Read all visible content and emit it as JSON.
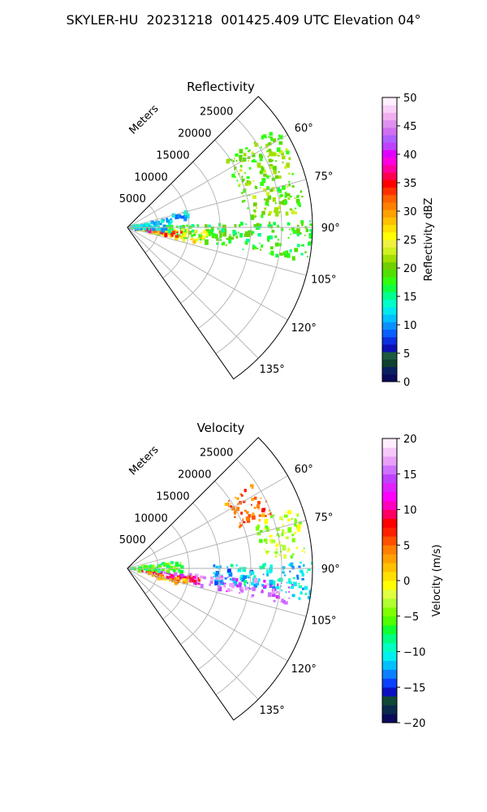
{
  "figure": {
    "title": "SKYLER-HU  20231218  001425.409 UTC Elevation 04°"
  },
  "chart_data": [
    {
      "type": "heatmap",
      "projection": "polar-sector",
      "title": "Reflectivity",
      "range_label": "Meters",
      "range_ticks": [
        "5000",
        "10000",
        "15000",
        "20000",
        "25000"
      ],
      "range_tick_values": [
        5000,
        10000,
        15000,
        20000,
        25000
      ],
      "range_max": 30000,
      "azimuth_range_deg": [
        45,
        145
      ],
      "azimuth_ticks": [
        "60°",
        "75°",
        "90°",
        "105°",
        "120°",
        "135°"
      ],
      "azimuth_tick_values": [
        60,
        75,
        90,
        105,
        120,
        135
      ],
      "grid": true,
      "colorbar": {
        "label": "Reflectivity dBZ",
        "ticks": [
          "0",
          "5",
          "10",
          "15",
          "20",
          "25",
          "30",
          "35",
          "40",
          "45",
          "50"
        ],
        "tick_values": [
          0,
          5,
          10,
          15,
          20,
          25,
          30,
          35,
          40,
          45,
          50
        ],
        "range": [
          0,
          50
        ],
        "colors": [
          "#0a0a5a",
          "#0a2060",
          "#104030",
          "#1a5a40",
          "#0a10b0",
          "#0a30e0",
          "#0a60ff",
          "#0a90ff",
          "#00c0ff",
          "#00e8f0",
          "#00ffc8",
          "#00ff90",
          "#10ff40",
          "#30ff10",
          "#50e000",
          "#70d000",
          "#a0e000",
          "#d0f020",
          "#f0f040",
          "#ffff00",
          "#ffe000",
          "#ffc000",
          "#ffa000",
          "#ff8000",
          "#ff6000",
          "#ff3000",
          "#ff0000",
          "#ff0050",
          "#ff00a0",
          "#ff00e0",
          "#e000ff",
          "#c040ff",
          "#b060ff",
          "#d070f0",
          "#e090f0",
          "#f0b0f0",
          "#f8d0f8",
          "#fff0ff"
        ]
      },
      "echo_regions": [
        {
          "az": [
            56,
            86
          ],
          "r": [
            19000,
            29000
          ],
          "value": 20
        },
        {
          "az": [
            88,
            101
          ],
          "r": [
            2000,
            31000
          ],
          "value": 18
        },
        {
          "az": [
            92,
            103
          ],
          "r": [
            1500,
            13000
          ],
          "value": 26
        },
        {
          "az": [
            95,
            101
          ],
          "r": [
            3000,
            9000
          ],
          "value": 34
        },
        {
          "az": [
            80,
            95
          ],
          "r": [
            500,
            7000
          ],
          "value": 12
        },
        {
          "az": [
            75,
            82
          ],
          "r": [
            4000,
            10000
          ],
          "value": 11
        }
      ]
    },
    {
      "type": "heatmap",
      "projection": "polar-sector",
      "title": "Velocity",
      "range_label": "Meters",
      "range_ticks": [
        "5000",
        "10000",
        "15000",
        "20000",
        "25000"
      ],
      "range_tick_values": [
        5000,
        10000,
        15000,
        20000,
        25000
      ],
      "range_max": 30000,
      "azimuth_range_deg": [
        45,
        145
      ],
      "azimuth_ticks": [
        "60°",
        "75°",
        "90°",
        "105°",
        "120°",
        "135°"
      ],
      "azimuth_tick_values": [
        60,
        75,
        90,
        105,
        120,
        135
      ],
      "grid": true,
      "colorbar": {
        "label": "Velocity (m/s)",
        "ticks": [
          "−20",
          "−15",
          "−10",
          "−5",
          "0",
          "5",
          "10",
          "15",
          "20"
        ],
        "tick_values": [
          -20,
          -15,
          -10,
          -5,
          0,
          5,
          10,
          15,
          20
        ],
        "range": [
          -20,
          20
        ],
        "colors": [
          "#0a0a5a",
          "#0a2a4a",
          "#104838",
          "#0a10c0",
          "#0a40ff",
          "#0a80ff",
          "#00c0ff",
          "#00f0f0",
          "#00ffc0",
          "#00ff80",
          "#10ff30",
          "#50ff00",
          "#80ff00",
          "#b0ff30",
          "#e0ff40",
          "#ffff00",
          "#ffe000",
          "#ffc000",
          "#ffa000",
          "#ff8000",
          "#ff5000",
          "#ff2000",
          "#ff0000",
          "#ff0060",
          "#ff00c0",
          "#ff00ff",
          "#e020ff",
          "#c040ff",
          "#d070ff",
          "#e8a0f8",
          "#f4c8f8",
          "#ffeeff"
        ]
      },
      "echo_regions": [
        {
          "az": [
            56,
            70
          ],
          "r": [
            19000,
            25000
          ],
          "value": 5
        },
        {
          "az": [
            70,
            86
          ],
          "r": [
            22000,
            29000
          ],
          "value": -3
        },
        {
          "az": [
            88,
            100
          ],
          "r": [
            14000,
            31000
          ],
          "value": -11
        },
        {
          "az": [
            95,
            103
          ],
          "r": [
            4000,
            27000
          ],
          "value": 15
        },
        {
          "az": [
            97,
            104
          ],
          "r": [
            2000,
            12000
          ],
          "value": 9
        },
        {
          "az": [
            101,
            108
          ],
          "r": [
            3000,
            10000
          ],
          "value": 3
        },
        {
          "az": [
            82,
            95
          ],
          "r": [
            500,
            9000
          ],
          "value": -6
        }
      ]
    }
  ]
}
